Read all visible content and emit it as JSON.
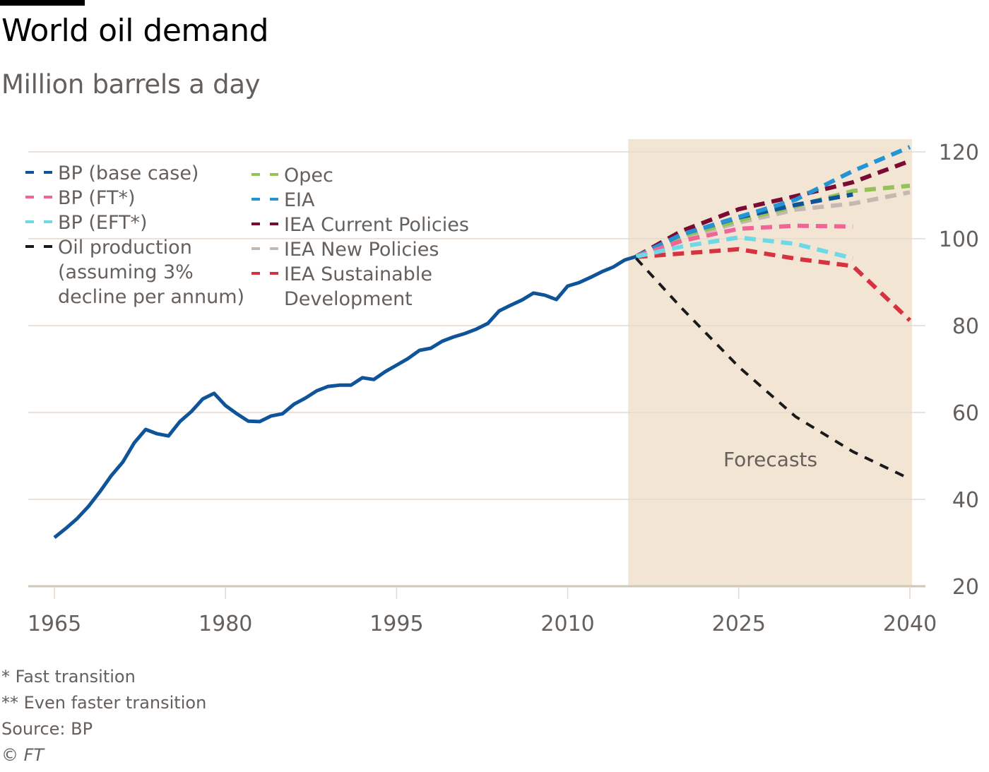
{
  "header": {
    "title": "World oil demand",
    "subtitle": "Million barrels a day"
  },
  "footer": {
    "notes": [
      "* Fast transition",
      "** Even faster transition",
      "Source: BP"
    ],
    "copyright": "© FT"
  },
  "chart_data": {
    "type": "line",
    "title": "World oil demand",
    "subtitle": "Million barrels a day",
    "xlabel": "",
    "ylabel": "Million barrels a day",
    "xlim": [
      1965,
      2040
    ],
    "ylim": [
      20,
      120
    ],
    "x_ticks": [
      1965,
      1980,
      1995,
      2010,
      2025,
      2040
    ],
    "y_ticks": [
      20,
      40,
      60,
      80,
      100,
      120
    ],
    "y_axis_side": "right",
    "grid": "horizontal",
    "forecast_region": {
      "x_start": 2015.3,
      "x_end": 2040,
      "label": "Forecasts",
      "color": "#f2e5d4"
    },
    "legend_placement": "top-left",
    "series": [
      {
        "name": "Historical demand",
        "style": "solid",
        "color": "#0f5499",
        "in_legend": false,
        "x": [
          1965,
          1966,
          1967,
          1968,
          1969,
          1970,
          1971,
          1972,
          1973,
          1974,
          1975,
          1976,
          1977,
          1978,
          1979,
          1980,
          1981,
          1982,
          1983,
          1984,
          1985,
          1986,
          1987,
          1988,
          1989,
          1990,
          1991,
          1992,
          1993,
          1994,
          1995,
          1996,
          1997,
          1998,
          1999,
          2000,
          2001,
          2002,
          2003,
          2004,
          2005,
          2006,
          2007,
          2008,
          2009,
          2010,
          2011,
          2012,
          2013,
          2014,
          2015,
          2016
        ],
        "y": [
          31.2,
          33.3,
          35.6,
          38.4,
          41.8,
          45.5,
          48.6,
          53.0,
          56.1,
          55.1,
          54.6,
          57.9,
          60.2,
          63.1,
          64.4,
          61.6,
          59.7,
          58.0,
          57.9,
          59.2,
          59.7,
          61.9,
          63.3,
          65.0,
          66.0,
          66.3,
          66.3,
          68.0,
          67.6,
          69.4,
          70.9,
          72.4,
          74.3,
          74.8,
          76.4,
          77.4,
          78.2,
          79.2,
          80.5,
          83.4,
          84.7,
          85.9,
          87.5,
          87.0,
          86.0,
          89.1,
          89.9,
          91.1,
          92.4,
          93.5,
          95.1,
          95.9
        ]
      },
      {
        "name": "BP (base case)",
        "style": "dashed",
        "color": "#0f5499",
        "in_legend": true,
        "x": [
          2016,
          2020,
          2025,
          2030,
          2035
        ],
        "y": [
          95.9,
          101.0,
          104.9,
          107.8,
          110.2
        ]
      },
      {
        "name": "BP (FT*)",
        "style": "dashed",
        "color": "#f16496",
        "in_legend": true,
        "x": [
          2016,
          2020,
          2025,
          2030,
          2035
        ],
        "y": [
          95.9,
          99.5,
          102.3,
          103.0,
          102.8
        ]
      },
      {
        "name": "BP (EFT*)",
        "style": "dashed",
        "color": "#6ed9e6",
        "in_legend": true,
        "x": [
          2016,
          2020,
          2025,
          2030,
          2035
        ],
        "y": [
          95.9,
          98.2,
          100.3,
          98.8,
          95.5
        ]
      },
      {
        "name": "Oil production (assuming 3% decline per annum)",
        "style": "dashed",
        "color": "#1a1a1a",
        "in_legend": true,
        "x": [
          2016,
          2020,
          2025,
          2030,
          2035,
          2040
        ],
        "y": [
          95.5,
          84.0,
          70.5,
          59.0,
          51.0,
          44.7
        ]
      },
      {
        "name": "Opec",
        "style": "dashed",
        "color": "#96c157",
        "in_legend": true,
        "x": [
          2016,
          2020,
          2025,
          2030,
          2035,
          2040
        ],
        "y": [
          95.9,
          100.6,
          104.2,
          107.5,
          111.0,
          112.2
        ]
      },
      {
        "name": "EIA",
        "style": "dashed",
        "color": "#2594d4",
        "in_legend": true,
        "x": [
          2016,
          2020,
          2025,
          2030,
          2035,
          2040
        ],
        "y": [
          95.9,
          101.0,
          105.0,
          109.0,
          115.6,
          121.1
        ]
      },
      {
        "name": "IEA Current Policies",
        "style": "dashed",
        "color": "#7a0b33",
        "in_legend": true,
        "x": [
          2016,
          2020,
          2025,
          2030,
          2035,
          2040
        ],
        "y": [
          95.9,
          101.8,
          106.8,
          109.8,
          113.0,
          117.9
        ]
      },
      {
        "name": "IEA New Policies",
        "style": "dashed",
        "color": "#c3b9b0",
        "in_legend": true,
        "x": [
          2016,
          2020,
          2025,
          2030,
          2035,
          2040
        ],
        "y": [
          95.9,
          100.2,
          103.7,
          106.7,
          108.1,
          110.7
        ]
      },
      {
        "name": "IEA Sustainable Development",
        "style": "dashed",
        "color": "#d7323f",
        "in_legend": true,
        "x": [
          2016,
          2020,
          2025,
          2030,
          2035,
          2040
        ],
        "y": [
          95.8,
          96.6,
          97.6,
          95.4,
          93.7,
          81.2
        ]
      }
    ],
    "legend": {
      "columns": [
        [
          {
            "series": "BP (base case)",
            "lines": [
              "BP (base case)"
            ]
          },
          {
            "series": "BP (FT*)",
            "lines": [
              "BP (FT*)"
            ]
          },
          {
            "series": "BP (EFT*)",
            "lines": [
              "BP (EFT*)"
            ]
          },
          {
            "series": "Oil production (assuming 3% decline per annum)",
            "lines": [
              "Oil production",
              "(assuming 3%",
              "decline per annum)"
            ]
          }
        ],
        [
          {
            "series": "Opec",
            "lines": [
              "Opec"
            ]
          },
          {
            "series": "EIA",
            "lines": [
              "EIA"
            ]
          },
          {
            "series": "IEA Current Policies",
            "lines": [
              "IEA Current Policies"
            ]
          },
          {
            "series": "IEA New Policies",
            "lines": [
              "IEA New Policies"
            ]
          },
          {
            "series": "IEA Sustainable Development",
            "lines": [
              "IEA Sustainable",
              "Development"
            ]
          }
        ]
      ]
    },
    "colors": {
      "gridline": "#e6d9ce",
      "axis": "#cec6b9",
      "tick_text": "#66605c"
    }
  }
}
